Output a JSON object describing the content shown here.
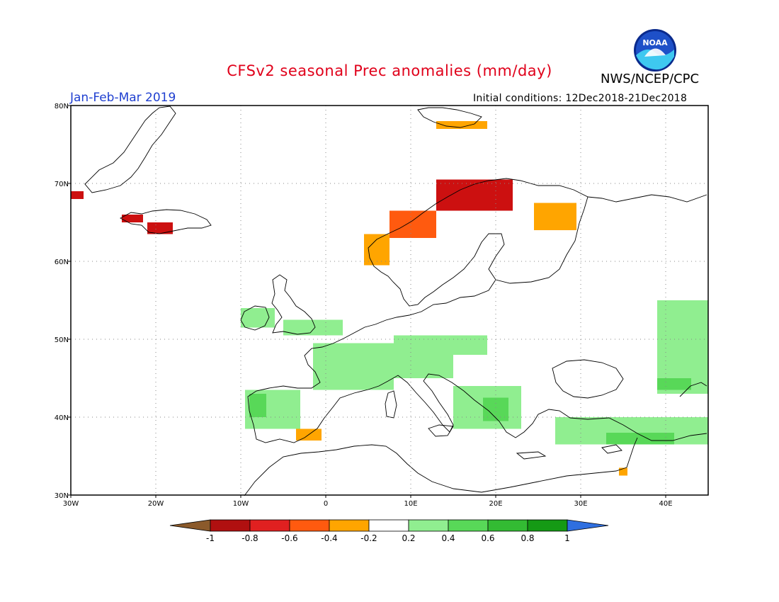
{
  "header": {
    "title": "CFSv2 seasonal Prec anomalies (mm/day)",
    "agency": "NWS/NCEP/CPC",
    "period": "Jan-Feb-Mar 2019",
    "initial_conditions": "Initial conditions: 12Dec2018-21Dec2018",
    "logo_text": "NOAA"
  },
  "axes": {
    "lon_ticks": [
      "30W",
      "20W",
      "10W",
      "0",
      "10E",
      "20E",
      "30E",
      "40E"
    ],
    "lat_ticks": [
      "80N",
      "70N",
      "60N",
      "50N",
      "40N",
      "30N"
    ],
    "lon_range": [
      -30,
      45
    ],
    "lat_range": [
      30,
      80
    ]
  },
  "legend": {
    "labels": [
      "-1",
      "-0.8",
      "-0.6",
      "-0.4",
      "-0.2",
      "0.2",
      "0.4",
      "0.6",
      "0.8",
      "1"
    ],
    "colors": [
      "#8b5a2b",
      "#b01010",
      "#e02020",
      "#ff5a0f",
      "#ffa500",
      "#ffffff",
      "#90ee90",
      "#58d858",
      "#33bb33",
      "#159a15",
      "#2f6fe0"
    ]
  },
  "colors": {
    "red": "#cc1010",
    "orange_red": "#ff5a0f",
    "orange": "#ffa500",
    "light_green": "#90ee90",
    "green": "#58d858",
    "dark_green": "#2fb52f"
  },
  "anomaly_regions": [
    {
      "name": "iceland-west",
      "lon": [
        -24,
        -21.5
      ],
      "lat": [
        65,
        66
      ],
      "color": "red"
    },
    {
      "name": "iceland-south",
      "lon": [
        -21,
        -18
      ],
      "lat": [
        63.5,
        65
      ],
      "color": "red"
    },
    {
      "name": "greenland-east",
      "lon": [
        -30,
        -28.5
      ],
      "lat": [
        68,
        69
      ],
      "color": "red"
    },
    {
      "name": "svalbard",
      "lon": [
        13,
        19
      ],
      "lat": [
        77,
        78
      ],
      "color": "orange"
    },
    {
      "name": "norway-south",
      "lon": [
        4.5,
        7.5
      ],
      "lat": [
        59.5,
        63.5
      ],
      "color": "orange"
    },
    {
      "name": "norway-central",
      "lon": [
        7.5,
        13
      ],
      "lat": [
        63,
        66.5
      ],
      "color": "orange_red"
    },
    {
      "name": "norway-north",
      "lon": [
        13,
        22
      ],
      "lat": [
        66.5,
        70.5
      ],
      "color": "red"
    },
    {
      "name": "finland",
      "lon": [
        24.5,
        29.5
      ],
      "lat": [
        64,
        67.5
      ],
      "color": "orange"
    },
    {
      "name": "spain-southeast",
      "lon": [
        -3.5,
        -0.5
      ],
      "lat": [
        37,
        38.5
      ],
      "color": "orange"
    },
    {
      "name": "israel",
      "lon": [
        34.5,
        35.5
      ],
      "lat": [
        32.5,
        33.5
      ],
      "color": "orange"
    },
    {
      "name": "france",
      "lon": [
        -1.5,
        8
      ],
      "lat": [
        43.5,
        49.5
      ],
      "color": "light_green"
    },
    {
      "name": "alps",
      "lon": [
        6,
        15
      ],
      "lat": [
        45,
        48
      ],
      "color": "light_green"
    },
    {
      "name": "central-europe",
      "lon": [
        8,
        19
      ],
      "lat": [
        48,
        50.5
      ],
      "color": "light_green"
    },
    {
      "name": "ireland",
      "lon": [
        -10,
        -6
      ],
      "lat": [
        51.5,
        54
      ],
      "color": "light_green"
    },
    {
      "name": "england",
      "lon": [
        -5,
        2
      ],
      "lat": [
        50.5,
        52.5
      ],
      "color": "light_green"
    },
    {
      "name": "iberia-west",
      "lon": [
        -9.5,
        -3
      ],
      "lat": [
        38.5,
        43.5
      ],
      "color": "light_green"
    },
    {
      "name": "portugal",
      "lon": [
        -9,
        -7
      ],
      "lat": [
        40,
        43
      ],
      "color": "green"
    },
    {
      "name": "balkans",
      "lon": [
        15,
        23
      ],
      "lat": [
        38.5,
        44
      ],
      "color": "light_green"
    },
    {
      "name": "albania",
      "lon": [
        18.5,
        21.5
      ],
      "lat": [
        39.5,
        42.5
      ],
      "color": "green"
    },
    {
      "name": "turkey",
      "lon": [
        27,
        45
      ],
      "lat": [
        36.5,
        40
      ],
      "color": "light_green"
    },
    {
      "name": "turkey-south",
      "lon": [
        33,
        41
      ],
      "lat": [
        36.5,
        38
      ],
      "color": "green"
    },
    {
      "name": "russia-southeast",
      "lon": [
        39,
        45
      ],
      "lat": [
        43,
        55
      ],
      "color": "light_green"
    },
    {
      "name": "caucasus",
      "lon": [
        39,
        43
      ],
      "lat": [
        43.5,
        45
      ],
      "color": "green"
    }
  ]
}
